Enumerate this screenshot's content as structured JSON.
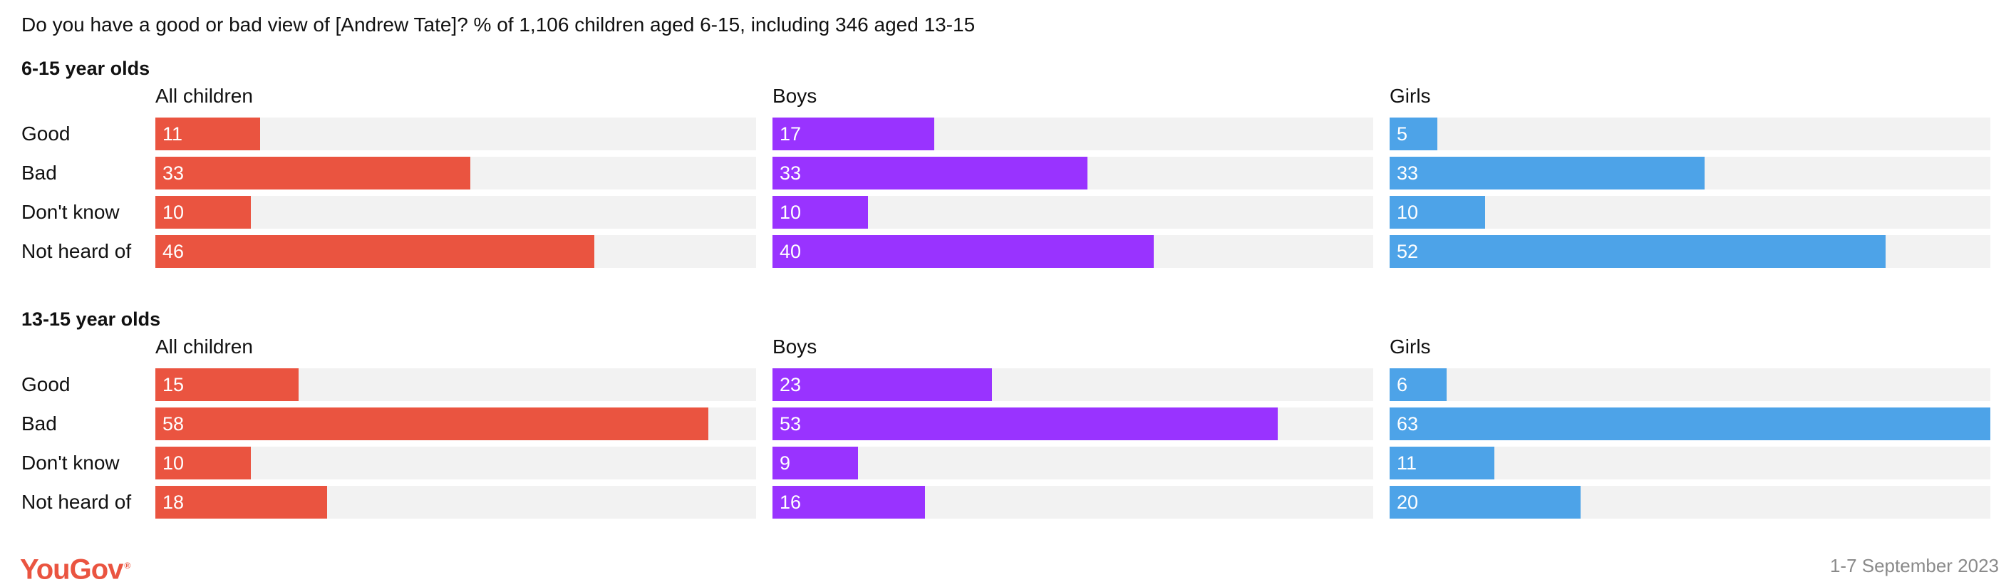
{
  "question": "Do you have a good or bad view of [Andrew Tate]? % of 1,106 children aged 6-15, including 346 aged 13-15",
  "logo_text": "YouGov",
  "date": "1-7 September 2023",
  "colors": {
    "all_children": "#ea5440",
    "boys": "#9933ff",
    "girls": "#4da3e8",
    "track": "#f2f2f2",
    "logo": "#ea5440"
  },
  "chart_data": {
    "type": "bar",
    "orientation": "horizontal",
    "xlim": [
      0,
      63
    ],
    "categories": [
      "Good",
      "Bad",
      "Don't know",
      "Not heard of"
    ],
    "groups": [
      "All children",
      "Boys",
      "Girls"
    ],
    "sections": [
      {
        "title": "6-15 year olds",
        "series": [
          {
            "name": "All children",
            "values": [
              11,
              33,
              10,
              46
            ]
          },
          {
            "name": "Boys",
            "values": [
              17,
              33,
              10,
              40
            ]
          },
          {
            "name": "Girls",
            "values": [
              5,
              33,
              10,
              52
            ]
          }
        ]
      },
      {
        "title": "13-15 year olds",
        "series": [
          {
            "name": "All children",
            "values": [
              15,
              58,
              10,
              18
            ]
          },
          {
            "name": "Boys",
            "values": [
              23,
              53,
              9,
              16
            ]
          },
          {
            "name": "Girls",
            "values": [
              6,
              63,
              11,
              20
            ]
          }
        ]
      }
    ]
  }
}
